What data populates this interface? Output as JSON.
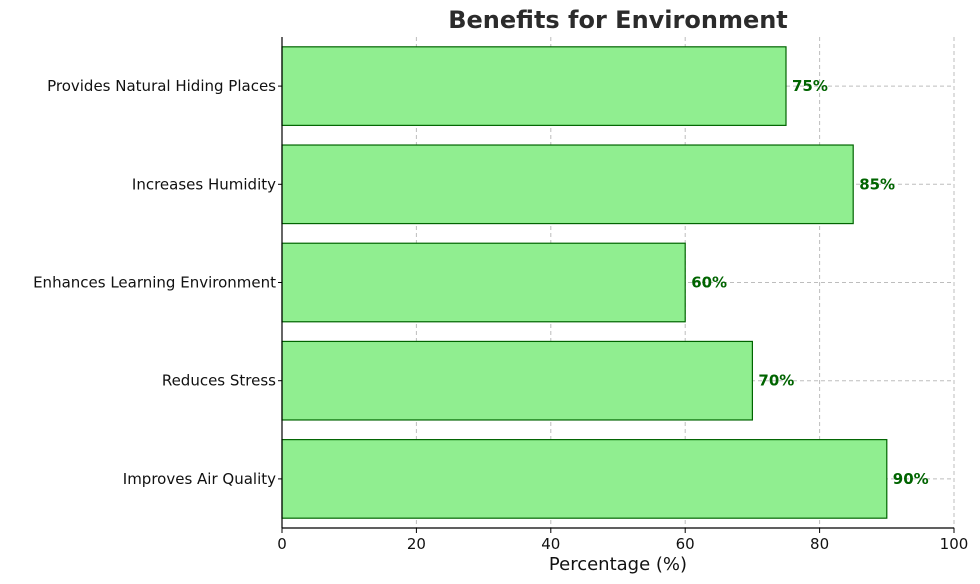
{
  "chart_data": {
    "type": "bar",
    "orientation": "horizontal",
    "title": "Benefits for Environment",
    "xlabel": "Percentage (%)",
    "ylabel": "",
    "categories": [
      "Improves Air Quality",
      "Reduces Stress",
      "Enhances Learning Environment",
      "Increases Humidity",
      "Provides Natural Hiding Places"
    ],
    "values": [
      90,
      70,
      60,
      85,
      75
    ],
    "data_labels": [
      "90%",
      "70%",
      "60%",
      "85%",
      "75%"
    ],
    "xlim": [
      0,
      100
    ],
    "x_ticks": [
      0,
      20,
      40,
      60,
      80,
      100
    ],
    "x_tick_labels": [
      "0",
      "20",
      "40",
      "60",
      "80",
      "100"
    ],
    "grid": true,
    "colors": {
      "bar_fill": "#90ee90",
      "bar_edge": "#006400",
      "label_text": "#006400"
    }
  }
}
